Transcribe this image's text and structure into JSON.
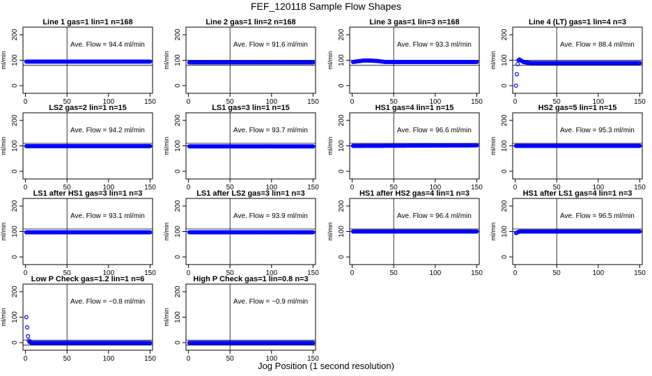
{
  "figure": {
    "title": "FEF_120118  Sample Flow Shapes",
    "xlabel": "Jog Position (1 second resolution)",
    "ylabel": "ml/min"
  },
  "chart_data": [
    {
      "type": "scatter",
      "title": "Line 1 gas=1 lin=1 n=168",
      "annotation": "Ave. Flow =  94.4  ml/min",
      "xlim": [
        -3,
        153
      ],
      "ylim": [
        -30,
        230
      ],
      "xticks": [
        0,
        50,
        100,
        150
      ],
      "yticks": [
        0,
        100,
        200
      ],
      "hlines": [
        80,
        100
      ],
      "vline": 50,
      "grid": false,
      "mean": 94.4,
      "series": [
        {
          "x": [
            1,
            150
          ],
          "y": [
            94.4,
            94.4
          ]
        }
      ]
    },
    {
      "type": "scatter",
      "title": "Line 2 gas=1 lin=2 n=168",
      "annotation": "Ave. Flow =  91.6  ml/min",
      "xlim": [
        -3,
        153
      ],
      "ylim": [
        -30,
        230
      ],
      "xticks": [
        0,
        50,
        100,
        150
      ],
      "yticks": [
        0,
        100,
        200
      ],
      "hlines": [
        80,
        100
      ],
      "vline": 50,
      "grid": false,
      "mean": 91.6,
      "series": [
        {
          "x": [
            1,
            150
          ],
          "y": [
            91.6,
            91.6
          ]
        }
      ]
    },
    {
      "type": "scatter",
      "title": "Line 3 gas=1 lin=3 n=168",
      "annotation": "Ave. Flow =  93.3  ml/min",
      "xlim": [
        -3,
        153
      ],
      "ylim": [
        -30,
        230
      ],
      "xticks": [
        0,
        50,
        100,
        150
      ],
      "yticks": [
        0,
        100,
        200
      ],
      "hlines": [
        80,
        100
      ],
      "vline": 50,
      "grid": false,
      "mean": 93.3,
      "series": [
        {
          "x": [
            1,
            5,
            10,
            15,
            20,
            25,
            30,
            35,
            40,
            150
          ],
          "y": [
            93,
            95,
            97,
            99,
            99,
            98,
            97,
            95,
            93,
            93
          ]
        }
      ]
    },
    {
      "type": "scatter",
      "title": "Line 4 (LT) gas=1 lin=4 n=3",
      "annotation": "Ave. Flow =  88.4  ml/min",
      "xlim": [
        -3,
        153
      ],
      "ylim": [
        -30,
        230
      ],
      "xticks": [
        0,
        50,
        100,
        150
      ],
      "yticks": [
        0,
        100,
        200
      ],
      "hlines": [
        80,
        100
      ],
      "vline": 50,
      "grid": false,
      "mean": 88.4,
      "series": [
        {
          "x": [
            1,
            2,
            3,
            4,
            5,
            6,
            8,
            10,
            15,
            20,
            150
          ],
          "y": [
            0,
            45,
            85,
            100,
            103,
            100,
            97,
            93,
            90,
            89,
            89
          ]
        }
      ]
    },
    {
      "type": "scatter",
      "title": "LS2 gas=2 lin=1 n=15",
      "annotation": "Ave. Flow =  94.2  ml/min",
      "xlim": [
        -3,
        153
      ],
      "ylim": [
        -30,
        230
      ],
      "xticks": [
        0,
        50,
        100,
        150
      ],
      "yticks": [
        0,
        100,
        200
      ],
      "hlines": [
        100,
        110
      ],
      "vline": 50,
      "grid": false,
      "mean": 94.2,
      "series": [
        {
          "x": [
            1,
            150
          ],
          "y": [
            99,
            99
          ]
        }
      ]
    },
    {
      "type": "scatter",
      "title": "LS1 gas=3 lin=1 n=15",
      "annotation": "Ave. Flow =  93.7  ml/min",
      "xlim": [
        -3,
        153
      ],
      "ylim": [
        -30,
        230
      ],
      "xticks": [
        0,
        50,
        100,
        150
      ],
      "yticks": [
        0,
        100,
        200
      ],
      "hlines": [
        100,
        110
      ],
      "vline": 50,
      "grid": false,
      "mean": 93.7,
      "series": [
        {
          "x": [
            1,
            150
          ],
          "y": [
            98,
            98
          ]
        }
      ]
    },
    {
      "type": "scatter",
      "title": "HS1 gas=4 lin=1 n=15",
      "annotation": "Ave. Flow =  96.6  ml/min",
      "xlim": [
        -3,
        153
      ],
      "ylim": [
        -30,
        230
      ],
      "xticks": [
        0,
        50,
        100,
        150
      ],
      "yticks": [
        0,
        100,
        200
      ],
      "hlines": [
        100,
        110
      ],
      "vline": 50,
      "grid": false,
      "mean": 96.6,
      "series": [
        {
          "x": [
            1,
            150
          ],
          "y": [
            100,
            102
          ]
        }
      ]
    },
    {
      "type": "scatter",
      "title": "HS2 gas=5 lin=1 n=15",
      "annotation": "Ave. Flow =  95.3  ml/min",
      "xlim": [
        -3,
        153
      ],
      "ylim": [
        -30,
        230
      ],
      "xticks": [
        0,
        50,
        100,
        150
      ],
      "yticks": [
        0,
        100,
        200
      ],
      "hlines": [
        100,
        110
      ],
      "vline": 50,
      "grid": false,
      "mean": 95.3,
      "series": [
        {
          "x": [
            1,
            150
          ],
          "y": [
            100,
            100
          ]
        }
      ]
    },
    {
      "type": "scatter",
      "title": "LS1 after HS1 gas=3 lin=1 n=3",
      "annotation": "Ave. Flow =  93.1  ml/min",
      "xlim": [
        -3,
        153
      ],
      "ylim": [
        -30,
        230
      ],
      "xticks": [
        0,
        50,
        100,
        150
      ],
      "yticks": [
        0,
        100,
        200
      ],
      "hlines": [
        100,
        110
      ],
      "vline": 50,
      "grid": false,
      "mean": 93.1,
      "series": [
        {
          "x": [
            1,
            150
          ],
          "y": [
            97,
            97
          ]
        }
      ]
    },
    {
      "type": "scatter",
      "title": "LS1 after LS2 gas=3 lin=1 n=3",
      "annotation": "Ave. Flow =  93.9  ml/min",
      "xlim": [
        -3,
        153
      ],
      "ylim": [
        -30,
        230
      ],
      "xticks": [
        0,
        50,
        100,
        150
      ],
      "yticks": [
        0,
        100,
        200
      ],
      "hlines": [
        100,
        110
      ],
      "vline": 50,
      "grid": false,
      "mean": 93.9,
      "series": [
        {
          "x": [
            1,
            150
          ],
          "y": [
            97,
            97
          ]
        }
      ]
    },
    {
      "type": "scatter",
      "title": "HS1 after HS2 gas=4 lin=1 n=3",
      "annotation": "Ave. Flow =  96.4  ml/min",
      "xlim": [
        -3,
        153
      ],
      "ylim": [
        -30,
        230
      ],
      "xticks": [
        0,
        50,
        100,
        150
      ],
      "yticks": [
        0,
        100,
        200
      ],
      "hlines": [
        100,
        110
      ],
      "vline": 50,
      "grid": false,
      "mean": 96.4,
      "series": [
        {
          "x": [
            1,
            150
          ],
          "y": [
            100,
            100
          ]
        }
      ]
    },
    {
      "type": "scatter",
      "title": "HS1 after LS1 gas=4 lin=1 n=3",
      "annotation": "Ave. Flow =  96.5  ml/min",
      "xlim": [
        -3,
        153
      ],
      "ylim": [
        -30,
        230
      ],
      "xticks": [
        0,
        50,
        100,
        150
      ],
      "yticks": [
        0,
        100,
        200
      ],
      "hlines": [
        100,
        110
      ],
      "vline": 50,
      "grid": false,
      "mean": 96.5,
      "series": [
        {
          "x": [
            1,
            3,
            5,
            150
          ],
          "y": [
            94,
            97,
            100,
            100
          ]
        }
      ]
    },
    {
      "type": "scatter",
      "title": "Low P Check gas=1.2 lin=1 n=6",
      "annotation": "Ave. Flow =  −0.8  ml/min",
      "xlim": [
        -3,
        153
      ],
      "ylim": [
        -30,
        230
      ],
      "xticks": [
        0,
        50,
        100,
        150
      ],
      "yticks": [
        0,
        100,
        200
      ],
      "hlines": [
        -10,
        10
      ],
      "vline": 50,
      "grid": false,
      "mean": -0.8,
      "series": [
        {
          "x": [
            1,
            2,
            3,
            4,
            5,
            6,
            8,
            10,
            150
          ],
          "y": [
            100,
            60,
            25,
            8,
            2,
            0,
            -1,
            -1,
            -1
          ]
        }
      ]
    },
    {
      "type": "scatter",
      "title": "High P Check gas=1 lin=0.8 n=3",
      "annotation": "Ave. Flow =  −0.9  ml/min",
      "xlim": [
        -3,
        153
      ],
      "ylim": [
        -30,
        230
      ],
      "xticks": [
        0,
        50,
        100,
        150
      ],
      "yticks": [
        0,
        100,
        200
      ],
      "hlines": [
        -10,
        10
      ],
      "vline": 50,
      "grid": false,
      "mean": -0.9,
      "series": [
        {
          "x": [
            1,
            150
          ],
          "y": [
            -1,
            -1
          ]
        }
      ]
    }
  ],
  "colors": {
    "points": "#0000ff",
    "axes": "#000000"
  },
  "marker": "open-circle"
}
